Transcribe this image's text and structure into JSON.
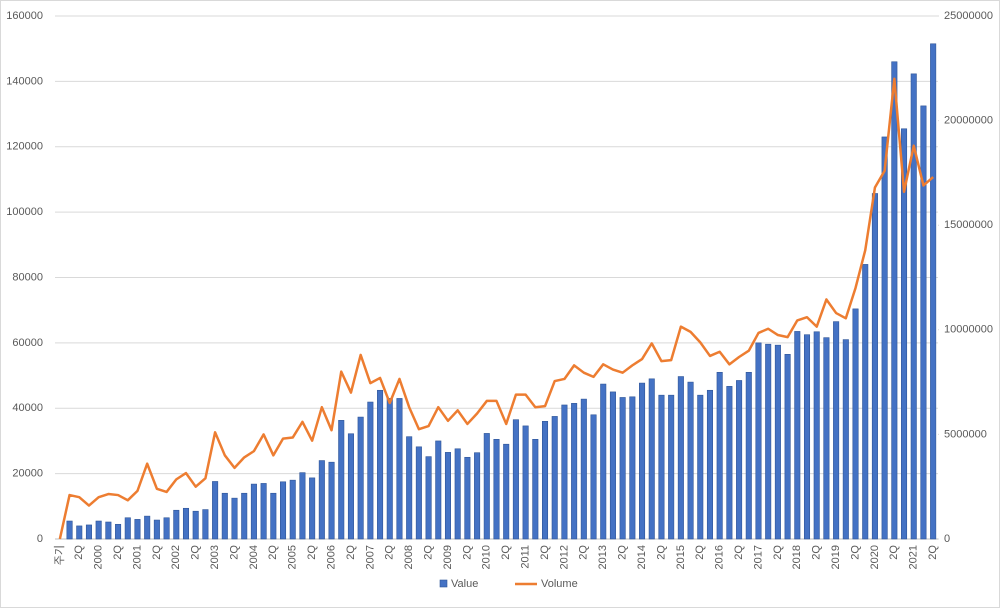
{
  "chart_data": {
    "type": "bar_line",
    "categories": [
      "주기",
      null,
      "2Q",
      null,
      "2000",
      null,
      "2Q",
      null,
      "2001",
      null,
      "2Q",
      null,
      "2002",
      null,
      "2Q",
      null,
      "2003",
      null,
      "2Q",
      null,
      "2004",
      null,
      "2Q",
      null,
      "2005",
      null,
      "2Q",
      null,
      "2006",
      null,
      "2Q",
      null,
      "2007",
      null,
      "2Q",
      null,
      "2008",
      null,
      "2Q",
      null,
      "2009",
      null,
      "2Q",
      null,
      "2010",
      null,
      "2Q",
      null,
      "2011",
      null,
      "2Q",
      null,
      "2012",
      null,
      "2Q",
      null,
      "2013",
      null,
      "2Q",
      null,
      "2014",
      null,
      "2Q",
      null,
      "2015",
      null,
      "2Q",
      null,
      "2016",
      null,
      "2Q",
      null,
      "2017",
      null,
      "2Q",
      null,
      "2018",
      null,
      "2Q",
      null,
      "2019",
      null,
      "2Q",
      null,
      "2020",
      null,
      "2Q",
      null,
      "2021",
      null,
      "2Q"
    ],
    "series": [
      {
        "name": "Value",
        "type": "bar",
        "color": "#4472c4",
        "values": [
          0,
          5500,
          4000,
          4300,
          5500,
          5200,
          4500,
          6500,
          6000,
          7000,
          5800,
          6500,
          8800,
          9400,
          8500,
          9000,
          17600,
          14000,
          12500,
          14000,
          16800,
          17000,
          14000,
          17500,
          18000,
          20300,
          18700,
          24000,
          23500,
          36300,
          32200,
          37300,
          41900,
          45500,
          43000,
          43000,
          31300,
          28200,
          25200,
          30000,
          26500,
          27600,
          25000,
          26400,
          32300,
          30500,
          29000,
          36500,
          34600,
          30500,
          36000,
          37500,
          41000,
          41500,
          42800,
          38000,
          47400,
          45000,
          43300,
          43500,
          47700,
          49000,
          44000,
          44000,
          49700,
          48000,
          44000,
          45500,
          51000,
          46700,
          48500,
          51000,
          60000,
          59600,
          59300,
          56500,
          63500,
          62500,
          63400,
          61600,
          66500,
          61000,
          70400,
          84000,
          105700,
          123000,
          146000,
          125500,
          142300,
          132500,
          151500
        ]
      },
      {
        "name": "Volume",
        "type": "line",
        "axis": "y2",
        "color": "#ed7d31",
        "values": [
          0,
          2100000,
          2000000,
          1600000,
          2000000,
          2150000,
          2100000,
          1850000,
          2300000,
          3600000,
          2400000,
          2250000,
          2850000,
          3150000,
          2500000,
          2900000,
          5100000,
          4000000,
          3400000,
          3900000,
          4200000,
          5000000,
          4000000,
          4800000,
          4850000,
          5600000,
          4700000,
          6300000,
          5200000,
          8000000,
          7000000,
          8800000,
          7450000,
          7700000,
          6500000,
          7650000,
          6300000,
          5250000,
          5400000,
          6300000,
          5650000,
          6150000,
          5500000,
          6000000,
          6600000,
          6600000,
          5500000,
          6900000,
          6900000,
          6300000,
          6350000,
          7550000,
          7650000,
          8300000,
          7950000,
          7750000,
          8350000,
          8100000,
          7950000,
          8300000,
          8600000,
          9350000,
          8500000,
          8550000,
          10150000,
          9900000,
          9400000,
          8750000,
          8950000,
          8350000,
          8700000,
          9000000,
          9850000,
          10050000,
          9750000,
          9650000,
          10450000,
          10600000,
          10150000,
          11450000,
          10800000,
          10550000,
          12000000,
          13800000,
          16800000,
          17600000,
          22000000,
          16600000,
          18800000,
          16900000,
          17300000
        ]
      }
    ],
    "ylim": [
      0,
      160000
    ],
    "yticks": [
      0,
      20000,
      40000,
      60000,
      80000,
      100000,
      120000,
      140000,
      160000
    ],
    "y2lim": [
      0,
      25000000
    ],
    "y2ticks": [
      0,
      5000000,
      10000000,
      15000000,
      20000000,
      25000000
    ],
    "grid": true,
    "legend": "bottom"
  }
}
